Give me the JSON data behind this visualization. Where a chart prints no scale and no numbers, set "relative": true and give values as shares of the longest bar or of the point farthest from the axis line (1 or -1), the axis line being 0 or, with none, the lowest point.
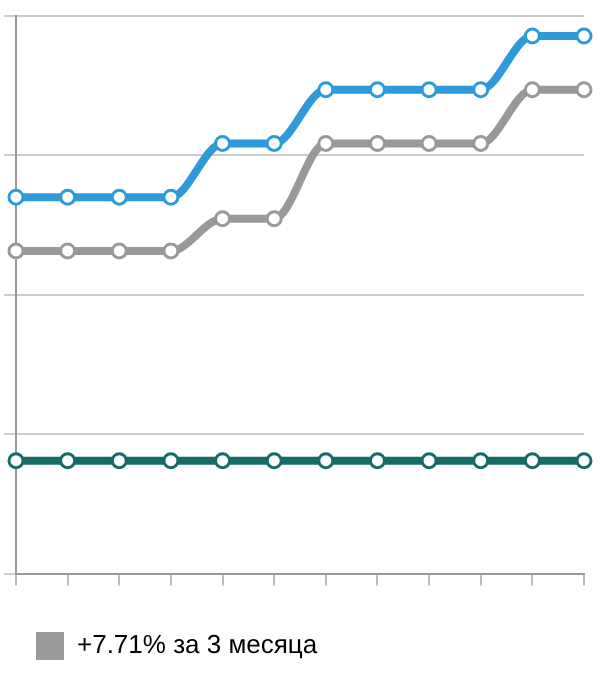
{
  "chart_data": {
    "type": "line",
    "relative": true,
    "categories": [
      null,
      null,
      null,
      null,
      null,
      null,
      null,
      null,
      null,
      null,
      null,
      null
    ],
    "series": [
      {
        "color": "#2e9ad8",
        "values": [
          0.7,
          0.7,
          0.7,
          0.7,
          0.8,
          0.8,
          0.9,
          0.9,
          0.9,
          0.9,
          1,
          1
        ]
      },
      {
        "name": "+7.71% за 3 месяца",
        "color": "#999999",
        "values": [
          0.6,
          0.6,
          0.6,
          0.6,
          0.66,
          0.66,
          0.8,
          0.8,
          0.8,
          0.8,
          0.9,
          0.9
        ]
      },
      {
        "color": "#176b67",
        "values": [
          0.21,
          0.21,
          0.21,
          0.21,
          0.21,
          0.21,
          0.21,
          0.21,
          0.21,
          0.21,
          0.21,
          0.21
        ]
      }
    ],
    "grid": "y",
    "legend": "bottom left",
    "marker": "circle",
    "line_style": "solid"
  }
}
